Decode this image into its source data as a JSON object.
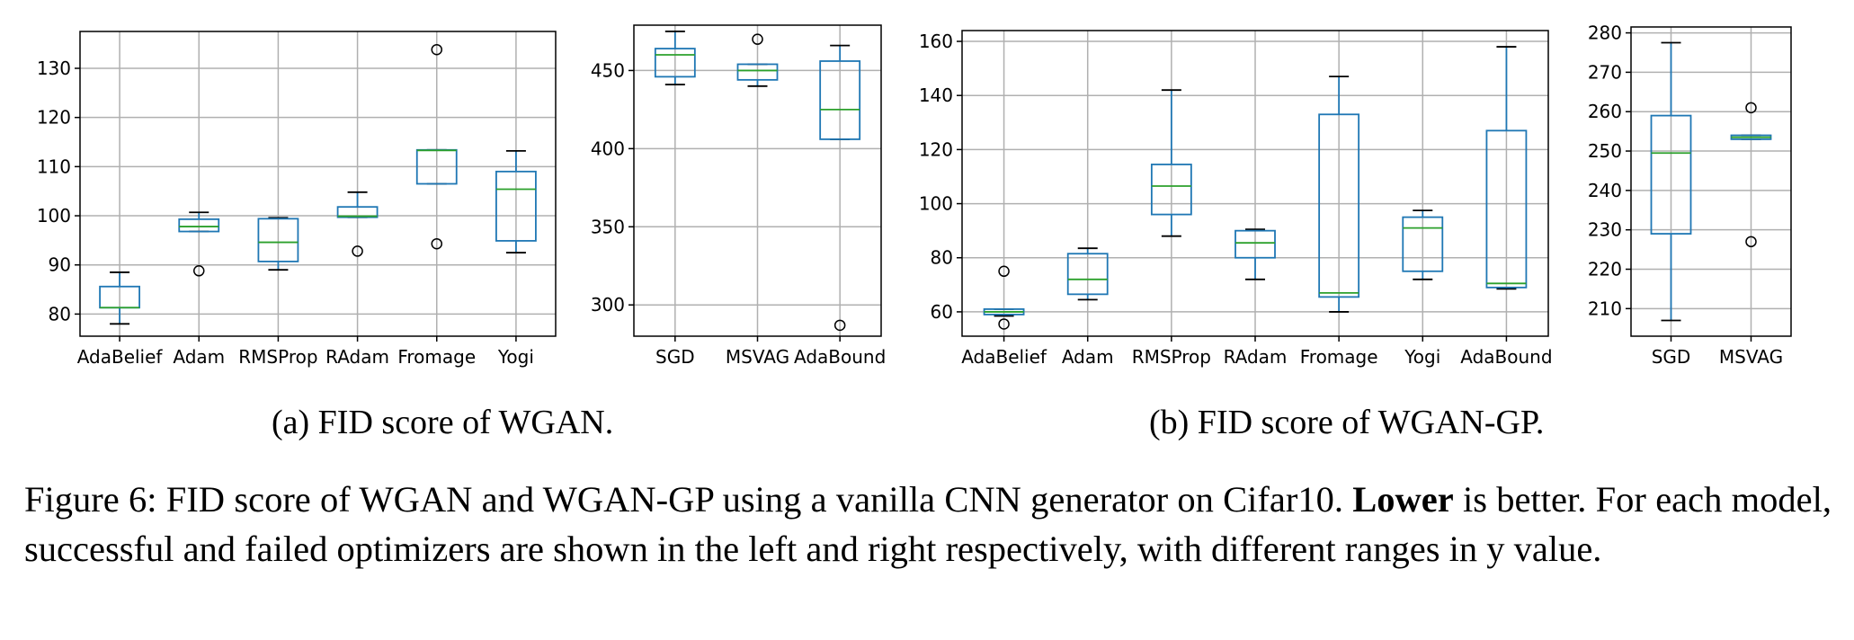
{
  "chart_data": [
    {
      "type": "box",
      "panel": "a-successful",
      "ylim": [
        75.5,
        137.5
      ],
      "yticks": [
        80,
        90,
        100,
        110,
        120,
        130
      ],
      "grid": true,
      "categories": [
        "AdaBelief",
        "Adam",
        "RMSProp",
        "RAdam",
        "Fromage",
        "Yogi"
      ],
      "boxes": [
        {
          "whislo": 78,
          "q1": 81.3,
          "med": 81.3,
          "q3": 85.6,
          "whishi": 88.5,
          "fliers": []
        },
        {
          "whislo": 96.8,
          "q1": 96.8,
          "med": 97.8,
          "q3": 99.3,
          "whishi": 100.7,
          "fliers": [
            88.8
          ]
        },
        {
          "whislo": 89,
          "q1": 90.7,
          "med": 94.6,
          "q3": 99.4,
          "whishi": 99.6,
          "fliers": []
        },
        {
          "whislo": 99.7,
          "q1": 99.7,
          "med": 99.9,
          "q3": 101.8,
          "whishi": 104.8,
          "fliers": [
            92.8
          ]
        },
        {
          "whislo": 106.5,
          "q1": 106.5,
          "med": 113.3,
          "q3": 113.4,
          "whishi": 113.4,
          "fliers": [
            94.3,
            133.8
          ]
        },
        {
          "whislo": 92.5,
          "q1": 94.9,
          "med": 105.4,
          "q3": 109.0,
          "whishi": 113.2,
          "fliers": []
        }
      ]
    },
    {
      "type": "box",
      "panel": "a-failed",
      "ylim": [
        280,
        479
      ],
      "yticks": [
        300,
        350,
        400,
        450
      ],
      "grid": true,
      "categories": [
        "SGD",
        "MSVAG",
        "AdaBound"
      ],
      "boxes": [
        {
          "whislo": 441,
          "q1": 446,
          "med": 460,
          "q3": 464,
          "whishi": 475,
          "fliers": []
        },
        {
          "whislo": 440,
          "q1": 444,
          "med": 450,
          "q3": 454,
          "whishi": 454,
          "fliers": [
            470
          ]
        },
        {
          "whislo": 406,
          "q1": 406,
          "med": 425,
          "q3": 456,
          "whishi": 466,
          "fliers": [
            287
          ]
        }
      ]
    },
    {
      "type": "box",
      "panel": "b-successful",
      "ylim": [
        51,
        164
      ],
      "yticks": [
        60,
        80,
        100,
        120,
        140,
        160
      ],
      "grid": true,
      "categories": [
        "AdaBelief",
        "Adam",
        "RMSProp",
        "RAdam",
        "Fromage",
        "Yogi",
        "AdaBound"
      ],
      "boxes": [
        {
          "whislo": 58.5,
          "q1": 59,
          "med": 60,
          "q3": 61,
          "whishi": 61,
          "fliers": [
            55.5,
            75
          ]
        },
        {
          "whislo": 64.5,
          "q1": 66.5,
          "med": 72,
          "q3": 81.5,
          "whishi": 83.5,
          "fliers": []
        },
        {
          "whislo": 88,
          "q1": 96,
          "med": 106.5,
          "q3": 114.5,
          "whishi": 142,
          "fliers": []
        },
        {
          "whislo": 72,
          "q1": 80,
          "med": 85.5,
          "q3": 90,
          "whishi": 90.5,
          "fliers": []
        },
        {
          "whislo": 60,
          "q1": 65.5,
          "med": 67,
          "q3": 133,
          "whishi": 147,
          "fliers": []
        },
        {
          "whislo": 72,
          "q1": 75,
          "med": 91,
          "q3": 95,
          "whishi": 97.5,
          "fliers": []
        },
        {
          "whislo": 68.5,
          "q1": 69,
          "med": 70.5,
          "q3": 127,
          "whishi": 158,
          "fliers": []
        }
      ]
    },
    {
      "type": "box",
      "panel": "b-failed",
      "ylim": [
        203,
        281.5
      ],
      "yticks": [
        210,
        220,
        230,
        240,
        250,
        260,
        270,
        280
      ],
      "grid": true,
      "categories": [
        "SGD",
        "MSVAG"
      ],
      "boxes": [
        {
          "whislo": 207,
          "q1": 229,
          "med": 249.5,
          "q3": 259,
          "whishi": 277.5,
          "fliers": []
        },
        {
          "whislo": 253,
          "q1": 253,
          "med": 253.5,
          "q3": 254,
          "whishi": 254,
          "fliers": [
            227,
            261
          ]
        }
      ]
    }
  ],
  "captions": {
    "sub_a": "(a) FID score of WGAN.",
    "sub_b": "(b) FID score of WGAN-GP.",
    "figure_prefix": "Figure 6: FID score of WGAN and WGAN-GP using a vanilla CNN generator on Cifar10. ",
    "figure_bold": "Lower",
    "figure_suffix": " is better. For each model, successful and failed optimizers are shown in the left and right respectively, with different ranges in y value."
  },
  "colors": {
    "box": "#1f77b4",
    "median": "#2ca02c",
    "whisker": "#000000",
    "grid": "#b0b0b0",
    "axis": "#000000"
  }
}
